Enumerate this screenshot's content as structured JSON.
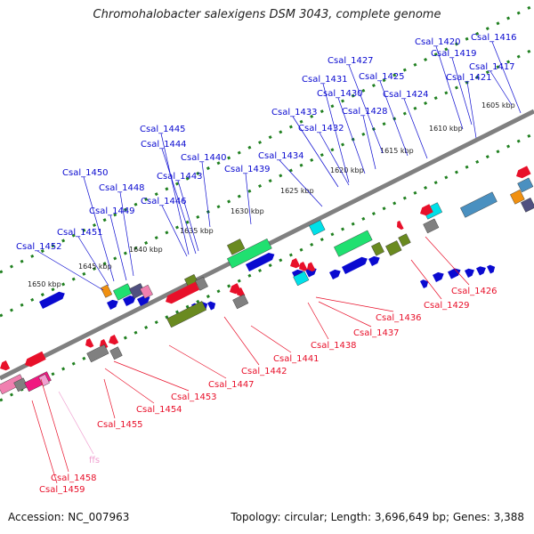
{
  "title": "Chromohalobacter salexigens DSM 3043, complete genome",
  "accession": "Accession: NC_007963",
  "topology": "Topology: circular; Length: 3,696,649 bp; Genes: 3,388",
  "colors": {
    "blue": "#0a0ad0",
    "red": "#e8102a",
    "teal": "#4a90c0",
    "cyan": "#00e0e8",
    "green": "#20e070",
    "olive": "#6a8a20",
    "gray": "#808080",
    "pink": "#f080b0",
    "magenta": "#f01880",
    "orange": "#f09010",
    "purple": "#505080",
    "ffs": "#f0a0d0",
    "tick": "#208020",
    "backbone": "#808080"
  },
  "ticks": [
    {
      "label": "1605 kbp"
    },
    {
      "label": "1610 kbp"
    },
    {
      "label": "1615 kbp"
    },
    {
      "label": "1620 kbp"
    },
    {
      "label": "1625 kbp"
    },
    {
      "label": "1630 kbp"
    },
    {
      "label": "1635 kbp"
    },
    {
      "label": "1640 kbp"
    },
    {
      "label": "1645 kbp"
    },
    {
      "label": "1650 kbp"
    }
  ],
  "top_labels": [
    {
      "label": "Csal_1416"
    },
    {
      "label": "Csal_1417"
    },
    {
      "label": "Csal_1419"
    },
    {
      "label": "Csal_1420"
    },
    {
      "label": "Csal_1421"
    },
    {
      "label": "Csal_1424"
    },
    {
      "label": "Csal_1425"
    },
    {
      "label": "Csal_1427"
    },
    {
      "label": "Csal_1428"
    },
    {
      "label": "Csal_1430"
    },
    {
      "label": "Csal_1431"
    },
    {
      "label": "Csal_1432"
    },
    {
      "label": "Csal_1433"
    },
    {
      "label": "Csal_1434"
    },
    {
      "label": "Csal_1439"
    },
    {
      "label": "Csal_1440"
    },
    {
      "label": "Csal_1443"
    },
    {
      "label": "Csal_1444"
    },
    {
      "label": "Csal_1445"
    },
    {
      "label": "Csal_1446"
    },
    {
      "label": "Csal_1448"
    },
    {
      "label": "Csal_1449"
    },
    {
      "label": "Csal_1450"
    },
    {
      "label": "Csal_1451"
    },
    {
      "label": "Csal_1452"
    }
  ],
  "bottom_labels": [
    {
      "label": "Csal_1426"
    },
    {
      "label": "Csal_1429"
    },
    {
      "label": "Csal_1436"
    },
    {
      "label": "Csal_1437"
    },
    {
      "label": "Csal_1438"
    },
    {
      "label": "Csal_1441"
    },
    {
      "label": "Csal_1442"
    },
    {
      "label": "Csal_1447"
    },
    {
      "label": "Csal_1453"
    },
    {
      "label": "Csal_1454"
    },
    {
      "label": "Csal_1455"
    },
    {
      "label": "ffs"
    },
    {
      "label": "Csal_1458"
    },
    {
      "label": "Csal_1459"
    }
  ]
}
